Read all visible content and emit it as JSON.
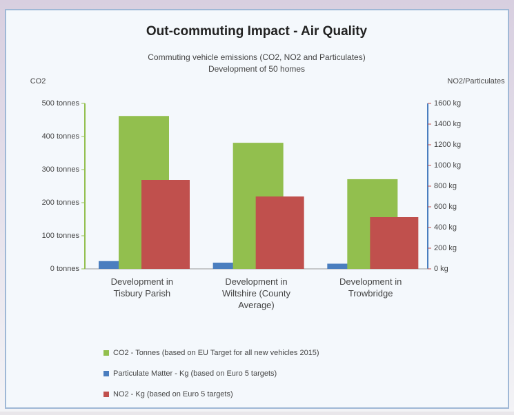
{
  "chart_data": {
    "type": "bar",
    "title": "Out-commuting Impact - Air Quality",
    "subtitle": [
      "Commuting vehicle emissions (CO2, NO2 and Particulates)",
      "Development of 50 homes"
    ],
    "y_label": "CO2",
    "y2_label": "NO2/Particulates",
    "categories": [
      "Development in Tisbury Parish",
      "Development in Wiltshire (County Average)",
      "Development in Trowbridge"
    ],
    "series": [
      {
        "name": "CO2 - Tonnes (based on EU Target for all new vehicles 2015)",
        "color": "#92bf4e",
        "values": [
          462,
          381,
          271
        ]
      },
      {
        "name": "Particulate Matter - Kg (based on Euro 5 targets)",
        "color": "#4a7ebf",
        "values": [
          75,
          60,
          50
        ],
        "axis": "y2"
      },
      {
        "name": "NO2 - Kg (based on Euro 5 targets)",
        "color": "#c0504d",
        "values": [
          860,
          700,
          500
        ],
        "axis": "y2"
      }
    ],
    "ylim": [
      0,
      500
    ],
    "yticks": [
      {
        "value": 0,
        "label": "0 tonnes"
      },
      {
        "value": 100,
        "label": "100 tonnes"
      },
      {
        "value": 200,
        "label": "200 tonnes"
      },
      {
        "value": 300,
        "label": "300 tonnes"
      },
      {
        "value": 400,
        "label": "400 tonnes"
      },
      {
        "value": 500,
        "label": "500 tonnes"
      }
    ],
    "y2lim": [
      0,
      1600
    ],
    "y2ticks": [
      {
        "value": 0,
        "label": "0 kg"
      },
      {
        "value": 200,
        "label": "200 kg"
      },
      {
        "value": 400,
        "label": "400 kg"
      },
      {
        "value": 600,
        "label": "600 kg"
      },
      {
        "value": 800,
        "label": "800 kg"
      },
      {
        "value": 1000,
        "label": "1000 kg"
      },
      {
        "value": 1200,
        "label": "1200 kg"
      },
      {
        "value": 1400,
        "label": "1400 kg"
      },
      {
        "value": 1600,
        "label": "1600 kg"
      }
    ],
    "grid": false,
    "legend": "bottom"
  }
}
